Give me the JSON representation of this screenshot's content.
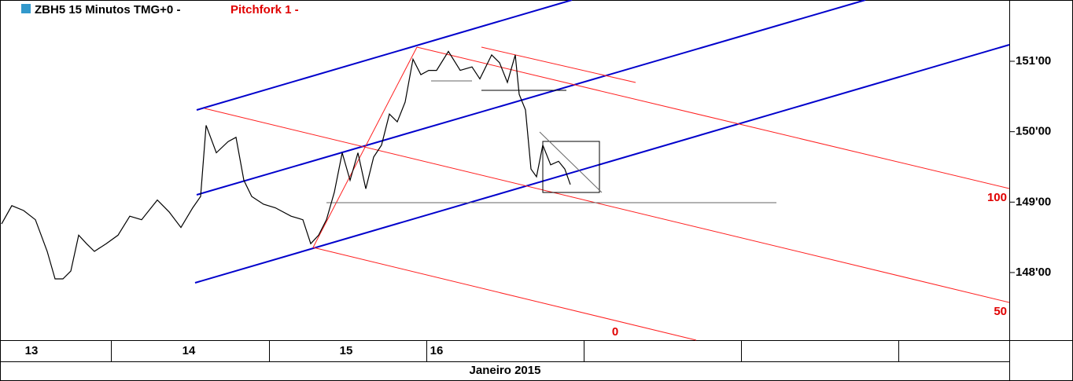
{
  "chart_data": {
    "type": "line",
    "title": "ZBH5 15 Minutos TMG+0 -",
    "subtitle": "Pitchfork 1 -",
    "x_label": "Janeiro 2015",
    "annotations": [
      "100",
      "50",
      "0"
    ],
    "x": [
      12.81,
      12.875,
      12.95,
      13.025,
      13.1,
      13.15,
      13.2,
      13.25,
      13.3,
      13.35,
      13.4,
      13.475,
      13.55,
      13.625,
      13.7,
      13.8,
      13.875,
      13.95,
      14.025,
      14.075,
      14.11,
      14.175,
      14.25,
      14.3,
      14.35,
      14.4,
      14.475,
      14.55,
      14.65,
      14.725,
      14.775,
      14.825,
      14.875,
      14.925,
      14.975,
      15.025,
      15.075,
      15.125,
      15.175,
      15.225,
      15.275,
      15.325,
      15.375,
      15.425,
      15.475,
      15.525,
      15.575,
      15.65,
      15.725,
      15.8,
      15.85,
      15.925,
      15.975,
      16.025,
      16.075,
      16.1,
      16.14,
      16.175,
      16.21,
      16.25,
      16.3,
      16.35,
      16.39,
      16.425
    ],
    "series": [
      {
        "name": "ZBH5",
        "color": "#000000",
        "values": [
          148.69,
          148.95,
          148.88,
          148.75,
          148.3,
          147.91,
          147.91,
          148.02,
          148.53,
          148.41,
          148.3,
          148.41,
          148.53,
          148.8,
          148.75,
          149.03,
          148.86,
          148.64,
          148.92,
          149.08,
          150.09,
          149.7,
          149.86,
          149.92,
          149.31,
          149.08,
          148.97,
          148.92,
          148.8,
          148.75,
          148.41,
          148.53,
          148.75,
          149.14,
          149.7,
          149.31,
          149.7,
          149.19,
          149.64,
          149.81,
          150.25,
          150.14,
          150.42,
          151.03,
          150.81,
          150.87,
          150.87,
          151.14,
          150.87,
          150.92,
          150.75,
          151.09,
          150.98,
          150.7,
          151.09,
          150.53,
          150.31,
          149.47,
          149.36,
          149.81,
          149.53,
          149.58,
          149.47,
          149.25
        ]
      }
    ],
    "xlim": [
      12.8,
      19.215
    ],
    "xticks": [
      {
        "value": 13,
        "label": "13"
      },
      {
        "value": 14,
        "label": "14"
      },
      {
        "value": 15,
        "label": "15"
      },
      {
        "value": 15.575,
        "label": "16"
      }
    ],
    "ylim": [
      147.04,
      151.87
    ],
    "yticks": [
      {
        "value": 148,
        "label": "148'00"
      },
      {
        "value": 149,
        "label": "149'00"
      },
      {
        "value": 150,
        "label": "150'00"
      },
      {
        "value": 151,
        "label": "151'00"
      }
    ]
  }
}
